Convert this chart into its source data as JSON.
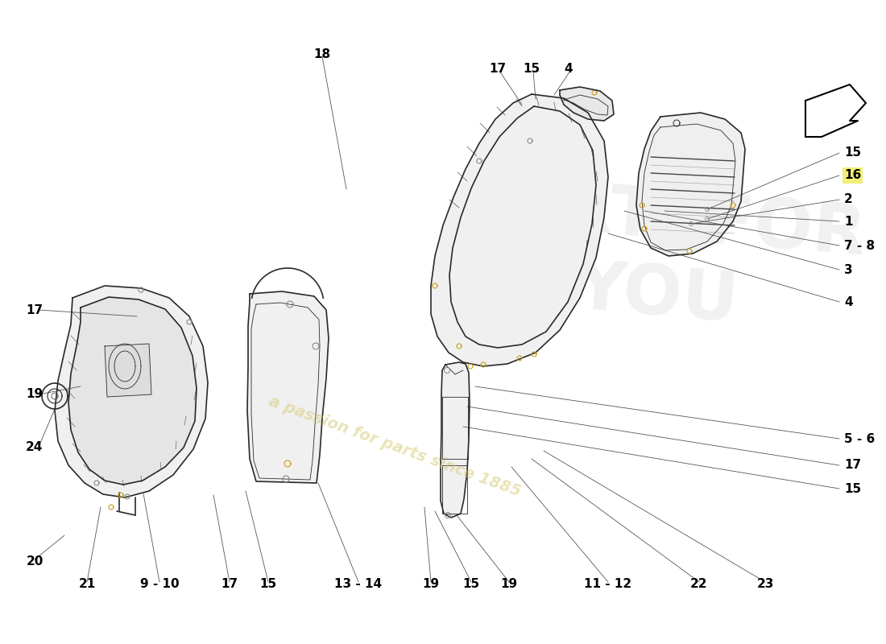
{
  "bg_color": "#ffffff",
  "line_color": "#2a2a2a",
  "line_color_light": "#888888",
  "shadow_color": "#cccccc",
  "watermark_text": "a passion for parts since 1885",
  "watermark_color": "#d4c870",
  "watermark_alpha": 0.5,
  "lw_main": 1.2,
  "lw_thin": 0.6,
  "lw_leader": 0.6,
  "label_fontsize": 11,
  "right_labels": [
    [
      "15",
      1048,
      190,
      false
    ],
    [
      "16",
      1048,
      218,
      true
    ],
    [
      "2",
      1048,
      248,
      false
    ],
    [
      "1",
      1048,
      275,
      false
    ],
    [
      "7 - 8",
      1048,
      305,
      false
    ],
    [
      "3",
      1048,
      335,
      false
    ],
    [
      "4",
      1048,
      375,
      false
    ],
    [
      "5 - 6",
      1048,
      545,
      false
    ],
    [
      "17",
      1048,
      578,
      false
    ],
    [
      "15",
      1048,
      607,
      false
    ]
  ],
  "top_labels": [
    [
      "18",
      400,
      67
    ],
    [
      "17",
      618,
      85
    ],
    [
      "15",
      660,
      85
    ],
    [
      "4",
      706,
      85
    ]
  ],
  "left_labels": [
    [
      "17",
      32,
      385
    ],
    [
      "19",
      32,
      490
    ],
    [
      "24",
      32,
      555
    ]
  ],
  "bottom_labels": [
    [
      "20",
      43,
      698
    ],
    [
      "21",
      108,
      726
    ],
    [
      "9 - 10",
      198,
      726
    ],
    [
      "17",
      285,
      726
    ],
    [
      "15",
      333,
      726
    ],
    [
      "13 - 14",
      445,
      726
    ],
    [
      "19",
      535,
      726
    ],
    [
      "15",
      585,
      726
    ],
    [
      "19",
      632,
      726
    ],
    [
      "11 - 12",
      755,
      726
    ],
    [
      "22",
      868,
      726
    ],
    [
      "23",
      950,
      726
    ]
  ]
}
